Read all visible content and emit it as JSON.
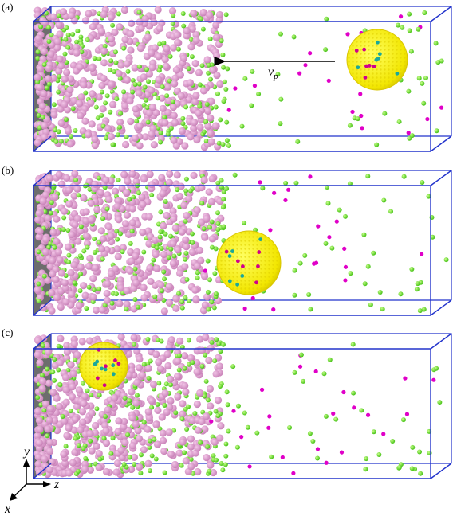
{
  "panels": [
    {
      "label": "(a)"
    },
    {
      "label": "(b)"
    },
    {
      "label": "(c)"
    }
  ],
  "velocity": {
    "symbol": "v",
    "subscript": "p"
  },
  "axes": {
    "y": "y",
    "z": "z",
    "x": "x"
  }
}
